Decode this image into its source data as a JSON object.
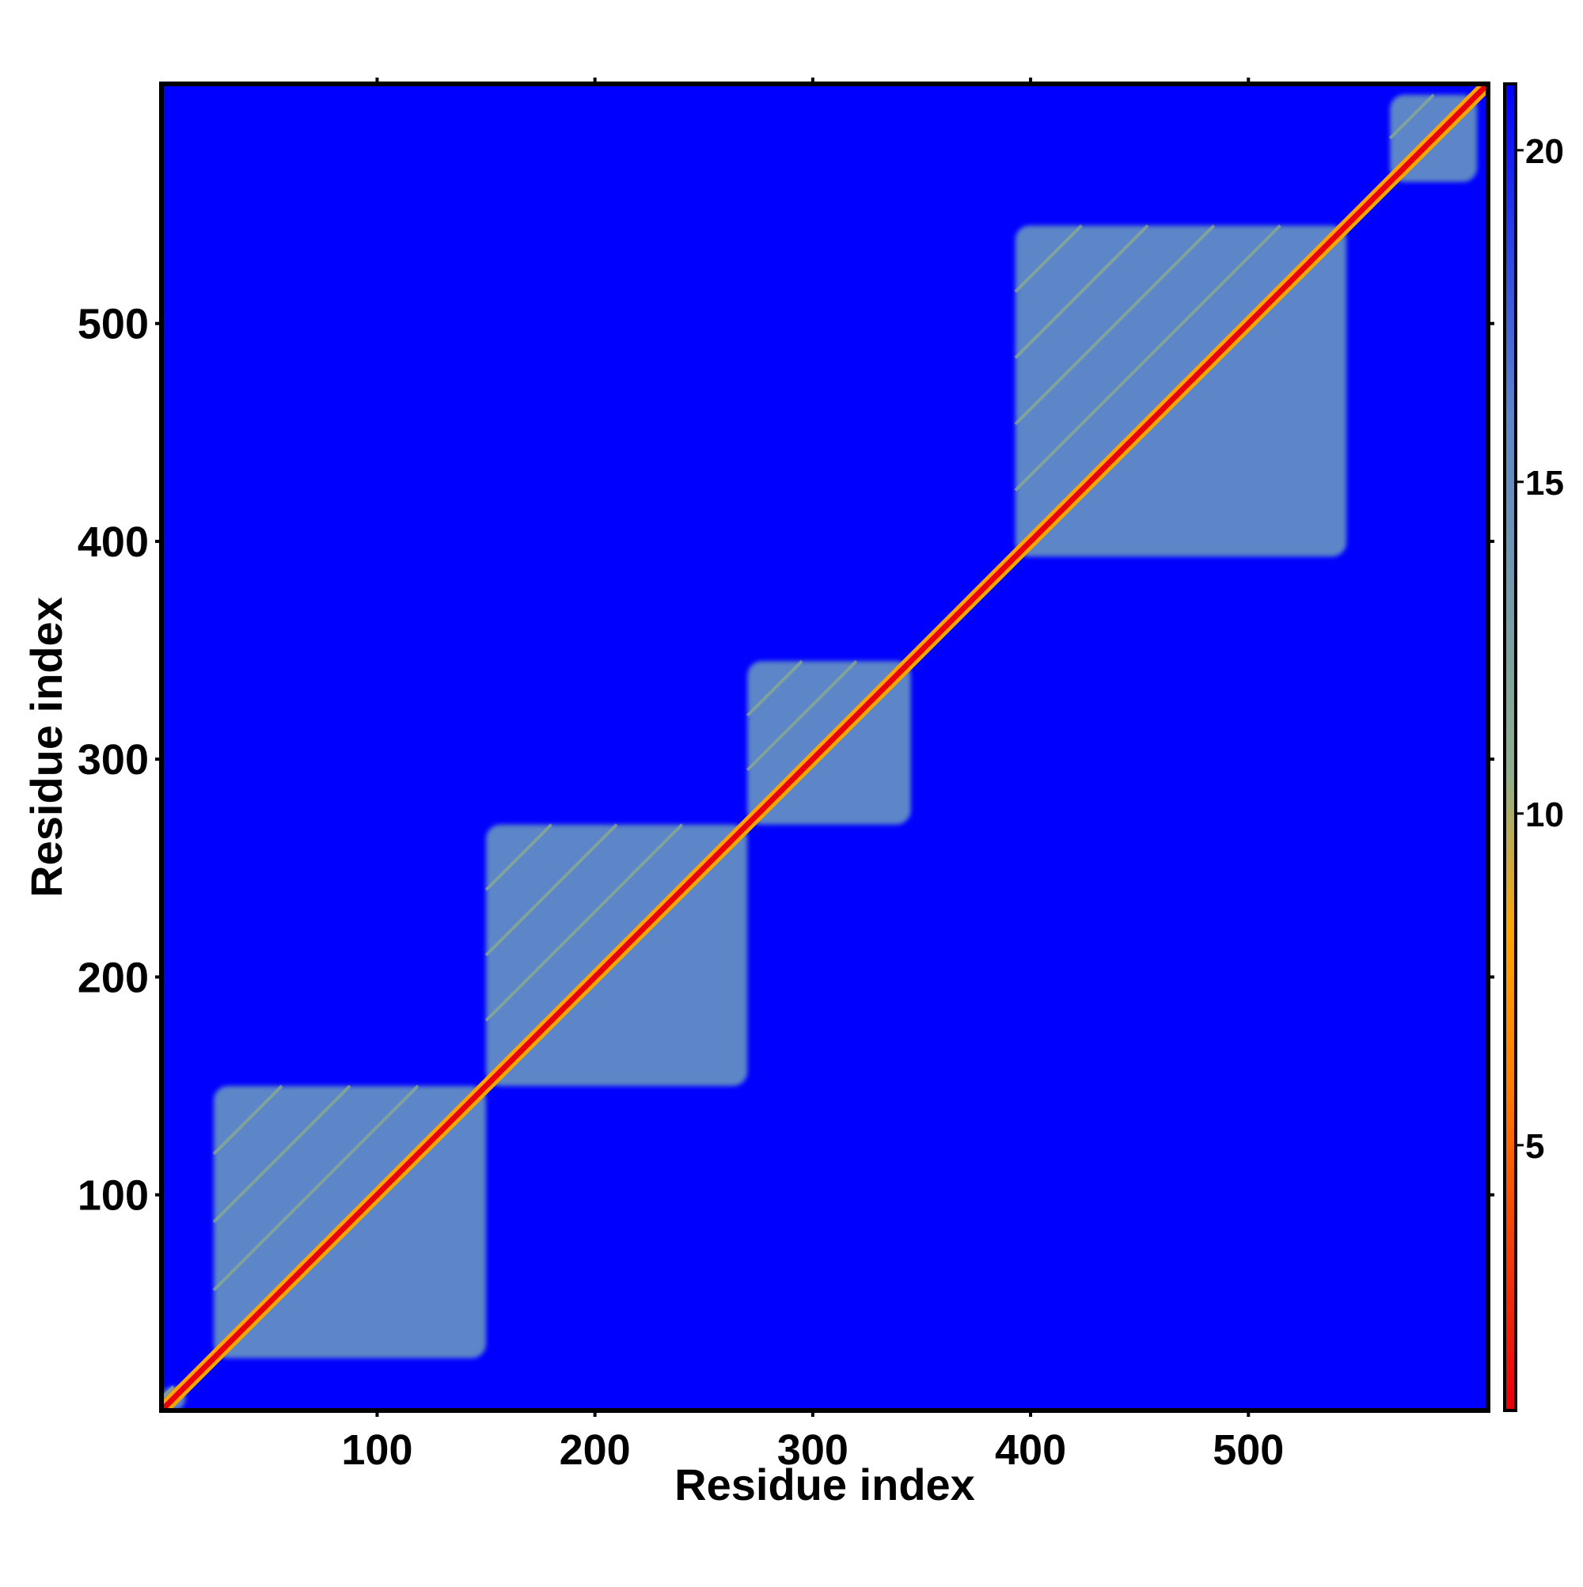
{
  "chart_data": {
    "type": "heatmap",
    "title": "",
    "xlabel": "Residue index",
    "ylabel": "Residue index",
    "xlim": [
      1,
      610
    ],
    "ylim": [
      1,
      610
    ],
    "x_ticks": [
      100,
      200,
      300,
      400,
      500
    ],
    "y_ticks": [
      100,
      200,
      300,
      400,
      500
    ],
    "x_tick_labels": [
      "100",
      "200",
      "300",
      "400",
      "500"
    ],
    "y_tick_labels": [
      "100",
      "200",
      "300",
      "400",
      "500"
    ],
    "colorbar": {
      "range": [
        1,
        21
      ],
      "ticks": [
        5,
        10,
        15,
        20
      ],
      "tick_labels": [
        "5",
        "10",
        "15",
        "20"
      ],
      "colors": [
        "#e8000b",
        "#ff7f00",
        "#ffa500",
        "#8fae8c",
        "#5b86c8",
        "#0000ff"
      ]
    },
    "background_color": "#0000ff",
    "diagonal_color": "#e8000b",
    "domains": [
      {
        "start": 1,
        "end": 12
      },
      {
        "start": 25,
        "end": 150
      },
      {
        "start": 150,
        "end": 270
      },
      {
        "start": 270,
        "end": 345
      },
      {
        "start": 393,
        "end": 545
      },
      {
        "start": 565,
        "end": 605
      }
    ],
    "grid": false,
    "legend": "colorbar-right"
  }
}
